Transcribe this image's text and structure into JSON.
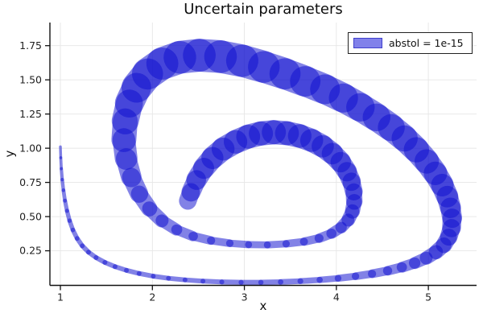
{
  "chart_data": {
    "type": "line",
    "title": "Uncertain parameters",
    "xlabel": "x",
    "ylabel": "y",
    "xlim": [
      0.886,
      5.524
    ],
    "ylim": [
      -0.003,
      1.919
    ],
    "grid": true,
    "xticks": {
      "values": [
        1,
        2,
        3,
        4,
        5
      ],
      "labels": [
        "1",
        "2",
        "3",
        "4",
        "5"
      ]
    },
    "yticks": {
      "values": [
        0.25,
        0.5,
        0.75,
        1.0,
        1.25,
        1.5,
        1.75
      ],
      "labels": [
        "0.25",
        "0.50",
        "0.75",
        "1.00",
        "1.25",
        "1.50",
        "1.75"
      ]
    },
    "legend": {
      "position": "top-right",
      "entries": [
        {
          "label": "abstol = 1e-15",
          "fill": "#8181ea",
          "border": "#4040cc"
        }
      ]
    },
    "colors": {
      "grid": "#e6e6e6",
      "axis": "#111111",
      "tick_label": "#1f1f1f",
      "title": "#0d0d0d",
      "background": "#ffffff",
      "band": "#1010d0"
    },
    "series": [
      {
        "name": "abstol = 1e-15",
        "type": "uncertainty-band",
        "color": "#1010d0",
        "fill_alpha": 0.52,
        "points_format": [
          "x",
          "y",
          "band_width_in_y_units"
        ],
        "points": [
          [
            1.0,
            1.01,
            0.02
          ],
          [
            1.004,
            0.93,
            0.021
          ],
          [
            1.01,
            0.85,
            0.023
          ],
          [
            1.02,
            0.77,
            0.025
          ],
          [
            1.033,
            0.692,
            0.027
          ],
          [
            1.05,
            0.616,
            0.029
          ],
          [
            1.072,
            0.542,
            0.031
          ],
          [
            1.1,
            0.47,
            0.032
          ],
          [
            1.136,
            0.402,
            0.033
          ],
          [
            1.182,
            0.34,
            0.034
          ],
          [
            1.238,
            0.286,
            0.035
          ],
          [
            1.306,
            0.24,
            0.035
          ],
          [
            1.388,
            0.2,
            0.035
          ],
          [
            1.484,
            0.165,
            0.035
          ],
          [
            1.594,
            0.134,
            0.035
          ],
          [
            1.718,
            0.107,
            0.035
          ],
          [
            1.856,
            0.084,
            0.035
          ],
          [
            2.01,
            0.064,
            0.035
          ],
          [
            2.175,
            0.049,
            0.035
          ],
          [
            2.355,
            0.037,
            0.035
          ],
          [
            2.55,
            0.028,
            0.035
          ],
          [
            2.755,
            0.022,
            0.036
          ],
          [
            2.965,
            0.019,
            0.037
          ],
          [
            3.18,
            0.019,
            0.038
          ],
          [
            3.395,
            0.022,
            0.04
          ],
          [
            3.61,
            0.028,
            0.042
          ],
          [
            3.82,
            0.037,
            0.045
          ],
          [
            4.02,
            0.049,
            0.049
          ],
          [
            4.21,
            0.064,
            0.054
          ],
          [
            4.39,
            0.082,
            0.06
          ],
          [
            4.56,
            0.104,
            0.067
          ],
          [
            4.715,
            0.13,
            0.075
          ],
          [
            4.855,
            0.161,
            0.084
          ],
          [
            4.98,
            0.198,
            0.094
          ],
          [
            5.085,
            0.242,
            0.104
          ],
          [
            5.17,
            0.293,
            0.114
          ],
          [
            5.222,
            0.352,
            0.124
          ],
          [
            5.252,
            0.418,
            0.133
          ],
          [
            5.258,
            0.49,
            0.142
          ],
          [
            5.24,
            0.566,
            0.15
          ],
          [
            5.205,
            0.648,
            0.158
          ],
          [
            5.15,
            0.732,
            0.165
          ],
          [
            5.075,
            0.818,
            0.172
          ],
          [
            4.98,
            0.905,
            0.179
          ],
          [
            4.868,
            0.99,
            0.185
          ],
          [
            4.74,
            1.073,
            0.191
          ],
          [
            4.595,
            1.152,
            0.197
          ],
          [
            4.435,
            1.227,
            0.203
          ],
          [
            4.26,
            1.3,
            0.208
          ],
          [
            4.075,
            1.368,
            0.213
          ],
          [
            3.875,
            1.432,
            0.218
          ],
          [
            3.66,
            1.49,
            0.223
          ],
          [
            3.44,
            1.545,
            0.228
          ],
          [
            3.21,
            1.595,
            0.232
          ],
          [
            2.975,
            1.64,
            0.236
          ],
          [
            2.74,
            1.67,
            0.239
          ],
          [
            2.51,
            1.68,
            0.24
          ],
          [
            2.3,
            1.665,
            0.239
          ],
          [
            2.11,
            1.62,
            0.235
          ],
          [
            1.95,
            1.545,
            0.228
          ],
          [
            1.83,
            1.445,
            0.218
          ],
          [
            1.75,
            1.33,
            0.205
          ],
          [
            1.705,
            1.2,
            0.19
          ],
          [
            1.69,
            1.063,
            0.174
          ],
          [
            1.715,
            0.925,
            0.158
          ],
          [
            1.77,
            0.79,
            0.142
          ],
          [
            1.855,
            0.668,
            0.126
          ],
          [
            1.965,
            0.56,
            0.11
          ],
          [
            2.1,
            0.472,
            0.094
          ],
          [
            2.26,
            0.405,
            0.08
          ],
          [
            2.44,
            0.357,
            0.068
          ],
          [
            2.635,
            0.325,
            0.059
          ],
          [
            2.84,
            0.305,
            0.054
          ],
          [
            3.045,
            0.295,
            0.051
          ],
          [
            3.25,
            0.293,
            0.051
          ],
          [
            3.455,
            0.301,
            0.053
          ],
          [
            3.65,
            0.317,
            0.058
          ],
          [
            3.815,
            0.342,
            0.065
          ],
          [
            3.95,
            0.377,
            0.074
          ],
          [
            4.055,
            0.422,
            0.084
          ],
          [
            4.13,
            0.477,
            0.094
          ],
          [
            4.175,
            0.54,
            0.105
          ],
          [
            4.195,
            0.61,
            0.115
          ],
          [
            4.19,
            0.683,
            0.125
          ],
          [
            4.163,
            0.757,
            0.134
          ],
          [
            4.115,
            0.83,
            0.142
          ],
          [
            4.045,
            0.9,
            0.15
          ],
          [
            3.955,
            0.962,
            0.157
          ],
          [
            3.85,
            1.015,
            0.163
          ],
          [
            3.73,
            1.058,
            0.168
          ],
          [
            3.6,
            1.09,
            0.172
          ],
          [
            3.462,
            1.11,
            0.175
          ],
          [
            3.32,
            1.117,
            0.177
          ],
          [
            3.18,
            1.108,
            0.177
          ],
          [
            3.042,
            1.085,
            0.175
          ],
          [
            2.905,
            1.047,
            0.172
          ],
          [
            2.77,
            0.995,
            0.168
          ],
          [
            2.655,
            0.93,
            0.162
          ],
          [
            2.56,
            0.855,
            0.154
          ],
          [
            2.48,
            0.77,
            0.145
          ],
          [
            2.42,
            0.68,
            0.134
          ],
          [
            2.385,
            0.615,
            0.124
          ]
        ]
      }
    ]
  }
}
